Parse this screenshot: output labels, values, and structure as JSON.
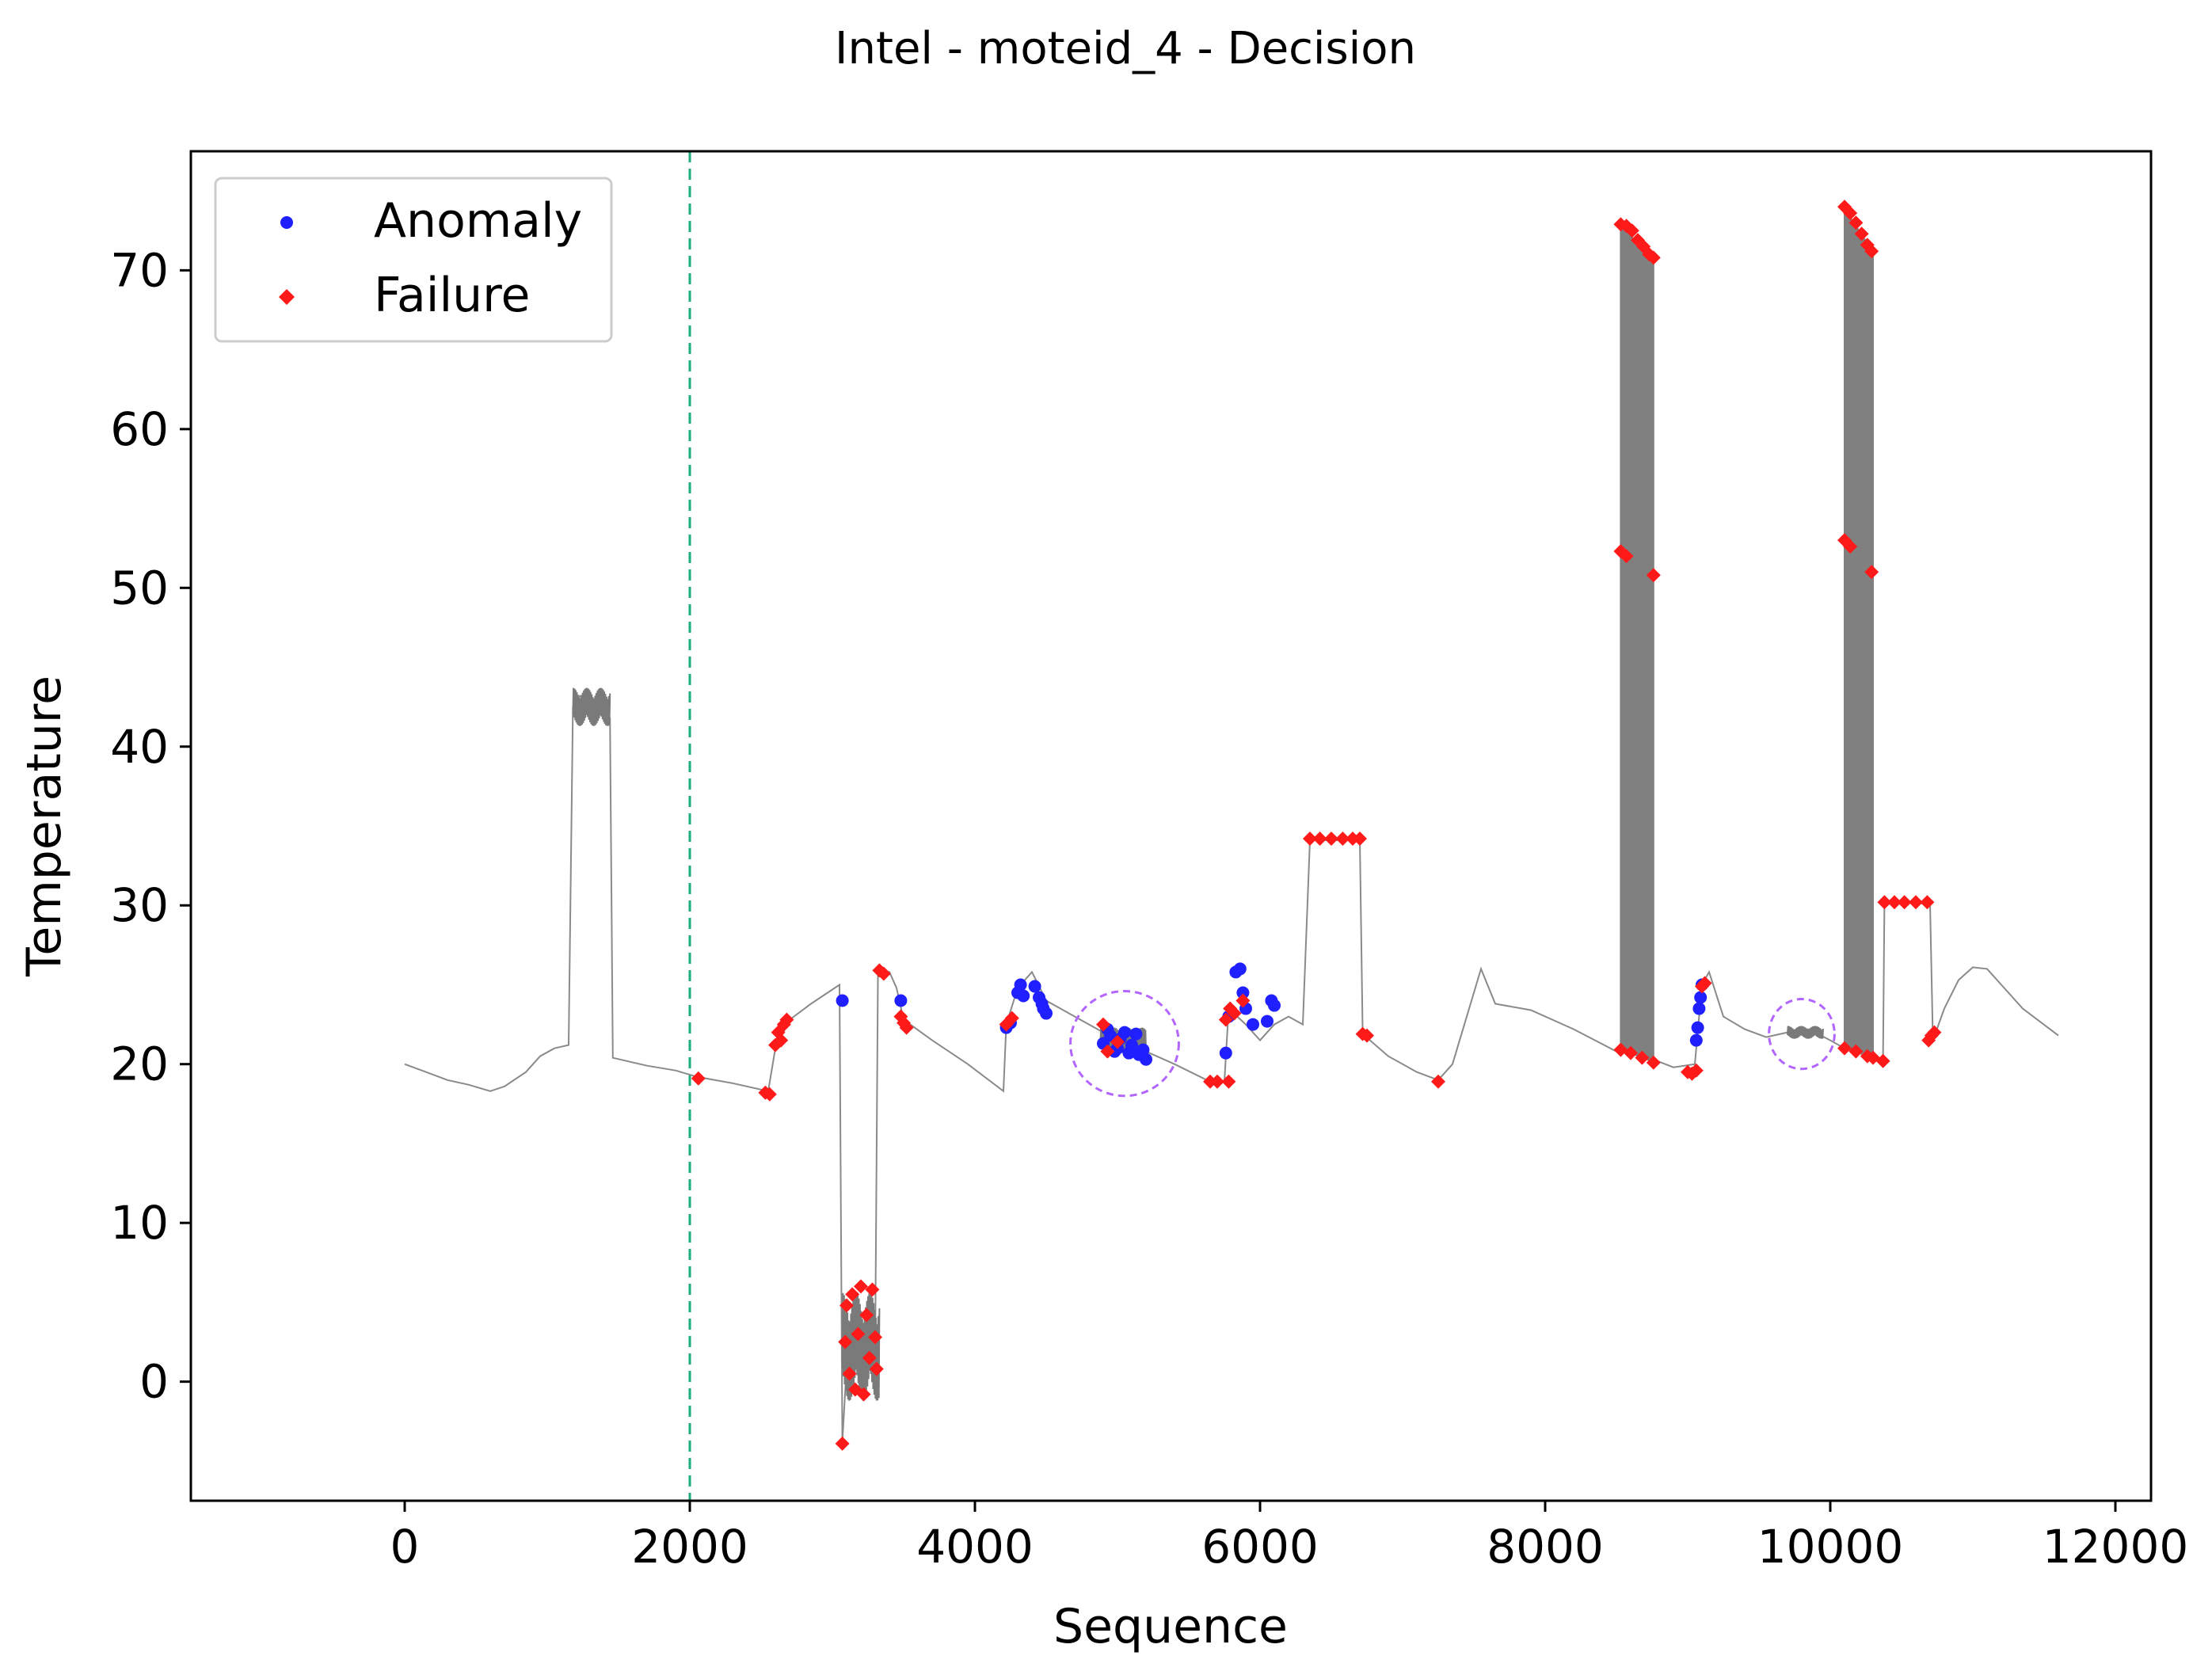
{
  "chart_data": {
    "type": "line",
    "title": "Intel - moteid_4 - Decision",
    "xlabel": "Sequence",
    "ylabel": "Temperature",
    "xlim": [
      -1500,
      12250
    ],
    "ylim": [
      -7.5,
      77.5
    ],
    "xticks": [
      0,
      2000,
      4000,
      6000,
      8000,
      10000,
      12000
    ],
    "yticks": [
      0,
      10,
      20,
      30,
      40,
      50,
      60,
      70
    ],
    "xtick_labels": [
      "0",
      "2000",
      "4000",
      "6000",
      "8000",
      "10000",
      "12000"
    ],
    "ytick_labels": [
      "0",
      "10",
      "20",
      "30",
      "40",
      "50",
      "60",
      "70"
    ],
    "grid": false,
    "legend_position": "top-left",
    "legend": [
      {
        "label": "Anomaly",
        "color": "#1f1fff",
        "marker": "circle"
      },
      {
        "label": "Failure",
        "color": "#ff1a1a",
        "marker": "diamond"
      }
    ],
    "vertical_line": {
      "x": 2000,
      "color": "#1aae7a",
      "style": "dashed"
    },
    "highlight_circles": [
      {
        "cx": 5050,
        "cy": 21.3,
        "rx": 380,
        "ry": 3.3,
        "color": "#b266ff"
      },
      {
        "cx": 9800,
        "cy": 21.9,
        "rx": 230,
        "ry": 2.2,
        "color": "#b266ff"
      }
    ],
    "series": [
      {
        "name": "Temperature",
        "color": "#8a8a8a",
        "points": [
          [
            0,
            20.0
          ],
          [
            150,
            19.5
          ],
          [
            300,
            19.0
          ],
          [
            450,
            18.7
          ],
          [
            600,
            18.3
          ],
          [
            700,
            18.6
          ],
          [
            850,
            19.5
          ],
          [
            950,
            20.5
          ],
          [
            1050,
            21.0
          ],
          [
            1150,
            21.2
          ],
          [
            1180,
            42.5
          ],
          [
            1230,
            43.2
          ],
          [
            1280,
            42.8
          ],
          [
            1330,
            42.3
          ],
          [
            1380,
            42.6
          ],
          [
            1440,
            41.8
          ],
          [
            1460,
            20.4
          ],
          [
            1700,
            19.9
          ],
          [
            1900,
            19.6
          ],
          [
            2050,
            19.2
          ],
          [
            2300,
            18.8
          ],
          [
            2550,
            18.3
          ],
          [
            2600,
            21.0
          ],
          [
            2700,
            22.8
          ],
          [
            2850,
            23.8
          ],
          [
            3050,
            25.0
          ],
          [
            3070,
            -3.8
          ],
          [
            3100,
            1.0
          ],
          [
            3150,
            3.5
          ],
          [
            3200,
            0.8
          ],
          [
            3250,
            4.5
          ],
          [
            3300,
            2.0
          ],
          [
            3320,
            26.0
          ],
          [
            3400,
            25.8
          ],
          [
            3450,
            24.8
          ],
          [
            3500,
            22.8
          ],
          [
            3700,
            21.5
          ],
          [
            3950,
            20.0
          ],
          [
            4200,
            18.3
          ],
          [
            4220,
            22.5
          ],
          [
            4300,
            24.8
          ],
          [
            4400,
            25.8
          ],
          [
            4500,
            24.0
          ],
          [
            4700,
            23.0
          ],
          [
            4900,
            22.0
          ],
          [
            5000,
            21.8
          ],
          [
            5100,
            21.0
          ],
          [
            5200,
            20.8
          ],
          [
            5400,
            20.0
          ],
          [
            5650,
            18.9
          ],
          [
            5750,
            18.9
          ],
          [
            5780,
            23.5
          ],
          [
            5900,
            22.5
          ],
          [
            6000,
            21.5
          ],
          [
            6100,
            22.5
          ],
          [
            6200,
            23.0
          ],
          [
            6300,
            22.5
          ],
          [
            6350,
            34.1
          ],
          [
            6700,
            34.1
          ],
          [
            6720,
            21.9
          ],
          [
            6900,
            20.5
          ],
          [
            7100,
            19.5
          ],
          [
            7250,
            19.0
          ],
          [
            7350,
            20.0
          ],
          [
            7500,
            24.5
          ],
          [
            7550,
            26.0
          ],
          [
            7650,
            23.8
          ],
          [
            7900,
            23.4
          ],
          [
            8200,
            22.2
          ],
          [
            8500,
            20.8
          ],
          [
            8530,
            20.9
          ],
          [
            8700,
            20.5
          ],
          [
            8900,
            19.8
          ],
          [
            9050,
            20.0
          ],
          [
            9100,
            25.0
          ],
          [
            9150,
            25.8
          ],
          [
            9250,
            23.0
          ],
          [
            9400,
            22.2
          ],
          [
            9550,
            21.7
          ],
          [
            9700,
            22.0
          ],
          [
            9850,
            22.2
          ],
          [
            10000,
            21.5
          ],
          [
            10100,
            21.0
          ],
          [
            10300,
            20.4
          ],
          [
            10370,
            20.3
          ],
          [
            10380,
            30.2
          ],
          [
            10700,
            30.1
          ],
          [
            10720,
            21.5
          ],
          [
            10800,
            23.5
          ],
          [
            10900,
            25.3
          ],
          [
            11000,
            26.1
          ],
          [
            11100,
            26.0
          ],
          [
            11200,
            25.0
          ],
          [
            11350,
            23.5
          ],
          [
            11600,
            21.8
          ]
        ]
      }
    ],
    "spikes": [
      {
        "x_start": 8530,
        "x_end": 8760,
        "high_start": 72.8,
        "high_end": 70.8,
        "mid_start": 52.2,
        "mid_end": 50.8,
        "low_start": 20.9,
        "low_end": 20.1
      },
      {
        "x_start": 10100,
        "x_end": 10300,
        "high_start": 73.9,
        "high_end": 71.2,
        "mid_start": 53.0,
        "mid_end": 51.0,
        "low_start": 21.0,
        "low_end": 20.4
      }
    ],
    "noise_bands": [
      {
        "x_start": 1180,
        "x_end": 1440,
        "center": 42.5,
        "amplitude": 1.2
      },
      {
        "x_start": 3070,
        "x_end": 3330,
        "center": 2.2,
        "amplitude": 3.4
      },
      {
        "x_start": 4880,
        "x_end": 5200,
        "center": 21.5,
        "amplitude": 0.8
      },
      {
        "x_start": 9700,
        "x_end": 9950,
        "center": 22.0,
        "amplitude": 0.4
      }
    ],
    "anomalies": [
      [
        3070,
        24.0
      ],
      [
        3480,
        24.0
      ],
      [
        4220,
        22.3
      ],
      [
        4250,
        22.6
      ],
      [
        4300,
        24.5
      ],
      [
        4320,
        25.0
      ],
      [
        4340,
        24.3
      ],
      [
        4420,
        24.9
      ],
      [
        4450,
        24.2
      ],
      [
        4470,
        23.8
      ],
      [
        4500,
        23.2
      ],
      [
        4480,
        23.5
      ],
      [
        4900,
        21.3
      ],
      [
        4950,
        21.8
      ],
      [
        5000,
        21.0
      ],
      [
        5050,
        22.0
      ],
      [
        5100,
        21.2
      ],
      [
        5150,
        20.6
      ],
      [
        5200,
        20.3
      ],
      [
        4930,
        22.2
      ],
      [
        4980,
        20.8
      ],
      [
        5020,
        21.6
      ],
      [
        5080,
        20.7
      ],
      [
        5130,
        21.9
      ],
      [
        5180,
        20.9
      ],
      [
        5760,
        20.7
      ],
      [
        5780,
        23.0
      ],
      [
        5830,
        25.8
      ],
      [
        5860,
        26.0
      ],
      [
        5880,
        24.5
      ],
      [
        5900,
        23.5
      ],
      [
        5950,
        22.5
      ],
      [
        6050,
        22.7
      ],
      [
        6080,
        24.0
      ],
      [
        6100,
        23.7
      ],
      [
        9060,
        21.5
      ],
      [
        9070,
        22.3
      ],
      [
        9080,
        23.5
      ],
      [
        9090,
        24.2
      ],
      [
        9100,
        25.0
      ]
    ],
    "failures": [
      [
        2060,
        19.1
      ],
      [
        2530,
        18.2
      ],
      [
        2560,
        18.1
      ],
      [
        2600,
        21.2
      ],
      [
        2620,
        22.0
      ],
      [
        2640,
        21.5
      ],
      [
        2660,
        22.5
      ],
      [
        2680,
        22.8
      ],
      [
        3070,
        -3.9
      ],
      [
        3090,
        2.5
      ],
      [
        3100,
        4.8
      ],
      [
        3120,
        0.5
      ],
      [
        3140,
        5.5
      ],
      [
        3160,
        -0.5
      ],
      [
        3180,
        3.0
      ],
      [
        3200,
        6.0
      ],
      [
        3220,
        -0.8
      ],
      [
        3240,
        4.2
      ],
      [
        3260,
        1.5
      ],
      [
        3280,
        5.8
      ],
      [
        3300,
        2.8
      ],
      [
        3310,
        0.8
      ],
      [
        3330,
        25.9
      ],
      [
        3360,
        25.7
      ],
      [
        3480,
        23.0
      ],
      [
        3500,
        22.6
      ],
      [
        3520,
        22.3
      ],
      [
        4220,
        22.5
      ],
      [
        4260,
        22.9
      ],
      [
        4900,
        22.5
      ],
      [
        4930,
        20.8
      ],
      [
        5000,
        21.4
      ],
      [
        5650,
        18.9
      ],
      [
        5700,
        18.9
      ],
      [
        5780,
        18.9
      ],
      [
        5760,
        22.8
      ],
      [
        5790,
        23.5
      ],
      [
        5820,
        23.2
      ],
      [
        5880,
        24.0
      ],
      [
        6350,
        34.2
      ],
      [
        6420,
        34.2
      ],
      [
        6500,
        34.2
      ],
      [
        6580,
        34.2
      ],
      [
        6650,
        34.2
      ],
      [
        6700,
        34.2
      ],
      [
        6720,
        21.9
      ],
      [
        6750,
        21.8
      ],
      [
        7250,
        18.9
      ],
      [
        8530,
        72.9
      ],
      [
        8570,
        72.8
      ],
      [
        8610,
        72.5
      ],
      [
        8650,
        71.9
      ],
      [
        8690,
        71.5
      ],
      [
        8730,
        71.0
      ],
      [
        8760,
        70.8
      ],
      [
        8530,
        52.3
      ],
      [
        8570,
        52.0
      ],
      [
        8760,
        50.8
      ],
      [
        8530,
        20.9
      ],
      [
        8600,
        20.7
      ],
      [
        8680,
        20.4
      ],
      [
        8760,
        20.1
      ],
      [
        9000,
        19.5
      ],
      [
        9030,
        19.4
      ],
      [
        9060,
        19.6
      ],
      [
        9100,
        24.9
      ],
      [
        9120,
        25.1
      ],
      [
        10100,
        74.0
      ],
      [
        10140,
        73.6
      ],
      [
        10180,
        73.0
      ],
      [
        10220,
        72.3
      ],
      [
        10260,
        71.6
      ],
      [
        10290,
        71.2
      ],
      [
        10100,
        53.0
      ],
      [
        10140,
        52.6
      ],
      [
        10290,
        51.0
      ],
      [
        10100,
        21.0
      ],
      [
        10180,
        20.8
      ],
      [
        10260,
        20.5
      ],
      [
        10300,
        20.4
      ],
      [
        10370,
        20.2
      ],
      [
        10380,
        30.2
      ],
      [
        10450,
        30.2
      ],
      [
        10520,
        30.2
      ],
      [
        10600,
        30.2
      ],
      [
        10680,
        30.2
      ],
      [
        10690,
        21.5
      ],
      [
        10710,
        21.8
      ],
      [
        10730,
        22.0
      ]
    ]
  }
}
